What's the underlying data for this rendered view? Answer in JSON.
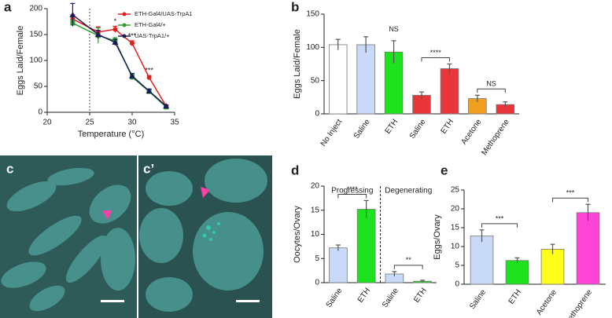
{
  "chart_data": [
    {
      "type": "line",
      "panel": "a",
      "x_label": "Temperature (°C)",
      "y_label": "Eggs Laid/Female",
      "x": [
        23,
        26,
        28,
        30,
        32,
        34
      ],
      "series": [
        {
          "name": "ETH-Gal4/UAS-TrpA1",
          "color": "#e0201c",
          "marker": "circle",
          "values": [
            180,
            155,
            160,
            133,
            67,
            12
          ],
          "errors": [
            8,
            10,
            6,
            5,
            4,
            2
          ]
        },
        {
          "name": "ETH-Gal4/+",
          "color": "#2aa02a",
          "marker": "square",
          "values": [
            172,
            148,
            138,
            68,
            40,
            10
          ],
          "errors": [
            6,
            15,
            6,
            5,
            4,
            2
          ]
        },
        {
          "name": "UAS-TrpA1/+",
          "color": "#1a1a5a",
          "marker": "triangle",
          "values": [
            188,
            150,
            135,
            70,
            41,
            12
          ],
          "errors": [
            22,
            8,
            6,
            5,
            4,
            2
          ]
        }
      ],
      "xlim": [
        20,
        35
      ],
      "xticks": [
        20,
        25,
        30,
        35
      ],
      "ylim": [
        0,
        200
      ],
      "yticks": [
        0,
        50,
        100,
        150,
        200
      ],
      "vline": 25,
      "annotations": [
        "*",
        "***",
        "***"
      ]
    },
    {
      "type": "bar",
      "panel": "b",
      "y_label": "Eggs Laid/Female",
      "categories": [
        "No Inject",
        "Saline",
        "ETH",
        "Saline",
        "ETH",
        "Acetone",
        "Methoprene"
      ],
      "values": [
        104,
        104,
        93,
        28,
        68,
        23,
        14
      ],
      "errors": [
        8,
        12,
        17,
        5,
        7,
        5,
        4
      ],
      "colors": [
        "#ffffff",
        "#c9daf8",
        "#1de21d",
        "#e8363a",
        "#e8363a",
        "#f0a020",
        "#e8363a"
      ],
      "ylim": [
        0,
        150
      ],
      "yticks": [
        0,
        50,
        100,
        150
      ],
      "annotations": [
        "NS",
        "****",
        "NS"
      ]
    },
    {
      "type": "bar",
      "panel": "d",
      "y_label": "Oocytes/Ovary",
      "group_labels": [
        "Progressing",
        "Degenerating"
      ],
      "categories": [
        "Saline",
        "ETH",
        "Saline",
        "ETH"
      ],
      "values": [
        7.2,
        15.2,
        1.8,
        0.3
      ],
      "errors": [
        0.6,
        1.8,
        0.5,
        0.2
      ],
      "colors": [
        "#c9daf8",
        "#1de21d",
        "#c9daf8",
        "#1de21d"
      ],
      "ylim": [
        0,
        20
      ],
      "yticks": [
        0,
        5,
        10,
        15,
        20
      ],
      "annotations": [
        "****",
        "**"
      ]
    },
    {
      "type": "bar",
      "panel": "e",
      "y_label": "Eggs/Ovary",
      "categories": [
        "Saline",
        "ETH",
        "Acetone",
        "Methoprene"
      ],
      "values": [
        12.8,
        6.3,
        9.3,
        19
      ],
      "errors": [
        1.6,
        0.7,
        1.3,
        2.2
      ],
      "colors": [
        "#c9daf8",
        "#1de21d",
        "#ffff1a",
        "#ff44d8"
      ],
      "ylim": [
        0,
        25
      ],
      "yticks": [
        0,
        5,
        10,
        15,
        20,
        25
      ],
      "annotations": [
        "***",
        "***"
      ]
    }
  ],
  "image_labels": [
    "c",
    "c’"
  ]
}
